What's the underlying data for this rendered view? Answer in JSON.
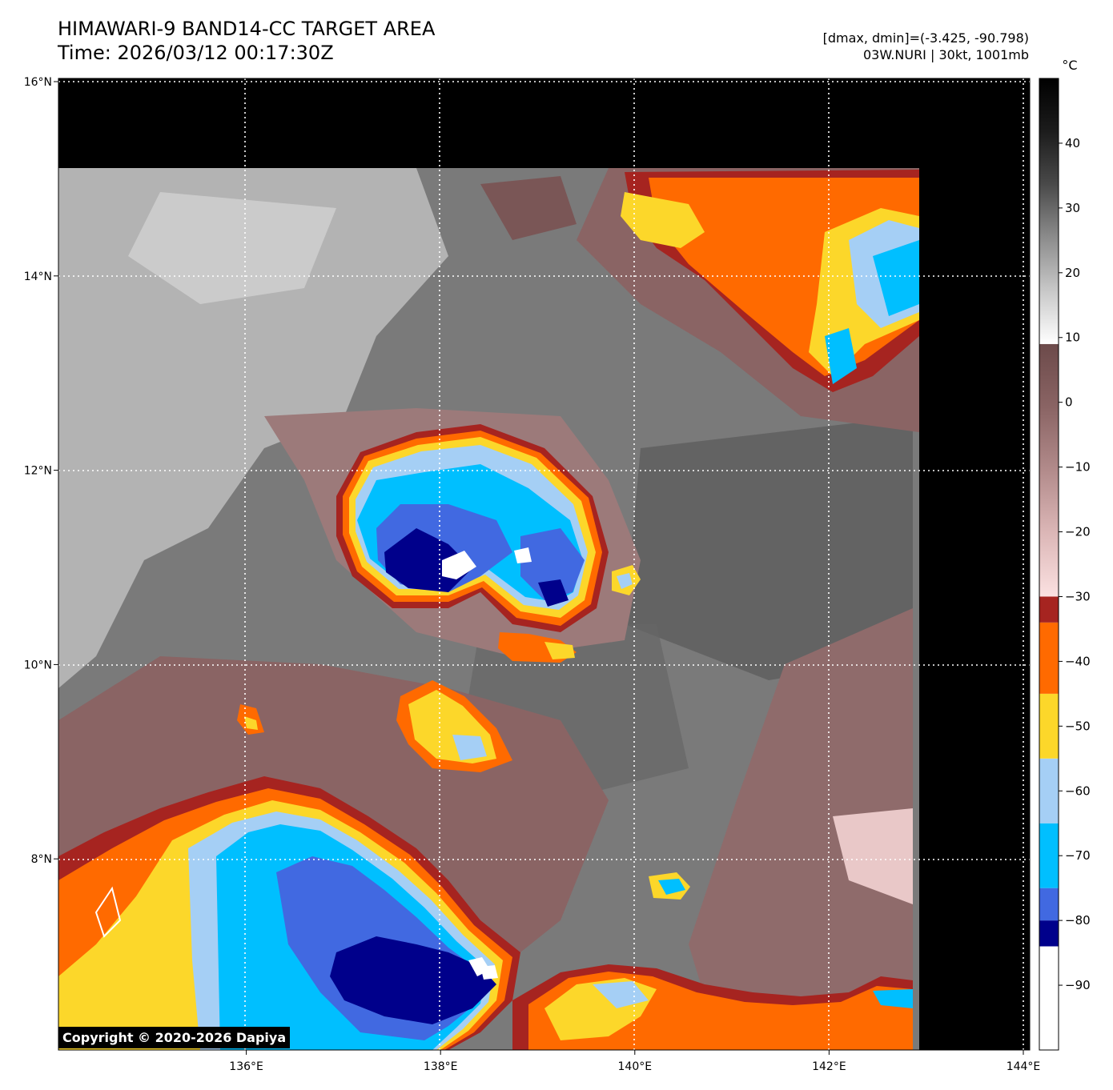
{
  "header": {
    "title_line1": "HIMAWARI-9 BAND14-CC TARGET AREA",
    "title_line2": "Time: 2026/03/12 00:17:30Z",
    "dmax_dmin": "[dmax, dmin]=(-3.425, -90.798)",
    "storm": "03W.NURI | 30kt, 1001mb"
  },
  "map": {
    "lon_range": [
      134,
      144
    ],
    "lat_range": [
      6,
      16
    ],
    "lon_ticks": [
      {
        "value": 136,
        "label": "136°E"
      },
      {
        "value": 138,
        "label": "138°E"
      },
      {
        "value": 140,
        "label": "140°E"
      },
      {
        "value": 142,
        "label": "142°E"
      },
      {
        "value": 144,
        "label": "144°E"
      }
    ],
    "lat_ticks": [
      {
        "value": 16,
        "label": "16°N"
      },
      {
        "value": 14,
        "label": "14°N"
      },
      {
        "value": 12,
        "label": "12°N"
      },
      {
        "value": 10,
        "label": "10°N"
      },
      {
        "value": 8,
        "label": "8°N"
      }
    ],
    "grid": "dotted white",
    "no_data_color": "#000000"
  },
  "colorbar": {
    "unit": "°C",
    "range": [
      -100,
      50
    ],
    "ticks": [
      {
        "value": 40,
        "label": "40"
      },
      {
        "value": 30,
        "label": "30"
      },
      {
        "value": 20,
        "label": "20"
      },
      {
        "value": 10,
        "label": "10"
      },
      {
        "value": 0,
        "label": "0"
      },
      {
        "value": -10,
        "label": "−10"
      },
      {
        "value": -20,
        "label": "−20"
      },
      {
        "value": -30,
        "label": "−30"
      },
      {
        "value": -40,
        "label": "−40"
      },
      {
        "value": -50,
        "label": "−50"
      },
      {
        "value": -60,
        "label": "−60"
      },
      {
        "value": -70,
        "label": "−70"
      },
      {
        "value": -80,
        "label": "−80"
      },
      {
        "value": -90,
        "label": "−90"
      }
    ],
    "bands": [
      {
        "from": -100,
        "to": -84,
        "color": "#ffffff"
      },
      {
        "from": -84,
        "to": -80,
        "color": "#00008b"
      },
      {
        "from": -80,
        "to": -75,
        "color": "#4169e1"
      },
      {
        "from": -75,
        "to": -65,
        "color": "#00bfff"
      },
      {
        "from": -65,
        "to": -55,
        "color": "#a5cff5"
      },
      {
        "from": -55,
        "to": -45,
        "color": "#fcd72a"
      },
      {
        "from": -45,
        "to": -34,
        "color": "#ff6a00"
      },
      {
        "from": -34,
        "to": -30,
        "color": "#a62420"
      }
    ],
    "gradients": [
      {
        "from": -30,
        "to": 9,
        "stops": [
          "#fbe1e1",
          "#dcb7b7",
          "#b28b8b",
          "#8a6464",
          "#6c4a4a"
        ]
      },
      {
        "from": 9,
        "to": 50,
        "stops": [
          "#ffffff",
          "#c8c8c8",
          "#8c8c8c",
          "#4a4a4a",
          "#1c1c1c",
          "#000000"
        ]
      }
    ]
  },
  "copyright": "Copyright © 2020-2026 Dapiya"
}
